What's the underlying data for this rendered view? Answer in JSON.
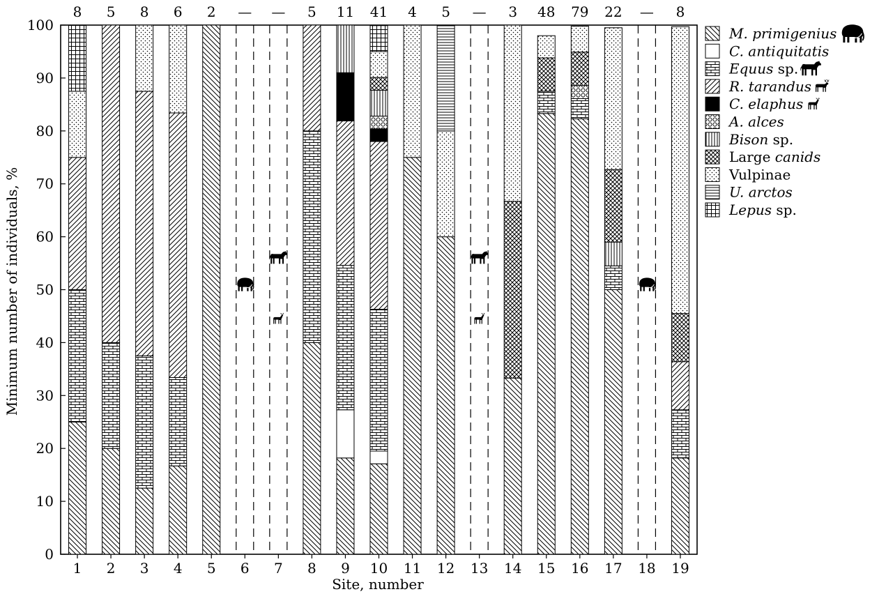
{
  "chart_data": {
    "type": "bar",
    "stacked": true,
    "xlabel": "Site, number",
    "ylabel": "Minimum number of individuals, %",
    "ylim": [
      0,
      100
    ],
    "yticks": [
      0,
      10,
      20,
      30,
      40,
      50,
      60,
      70,
      80,
      90,
      100
    ],
    "grid": false,
    "legend_position": "right",
    "categories": [
      "1",
      "2",
      "3",
      "4",
      "5",
      "6",
      "7",
      "8",
      "9",
      "10",
      "11",
      "12",
      "13",
      "14",
      "15",
      "16",
      "17",
      "18",
      "19"
    ],
    "top_labels": [
      "8",
      "5",
      "8",
      "6",
      "2",
      "—",
      "—",
      "5",
      "11",
      "41",
      "4",
      "5",
      "—",
      "3",
      "48",
      "79",
      "22",
      "—",
      "8"
    ],
    "series": [
      {
        "key": "mammuthus",
        "name": "M. primigenius",
        "name_italic": "M. primigenius",
        "name_plain": "",
        "icon": "mammoth-icon",
        "pattern": "diag-back",
        "values": [
          25,
          20,
          12.5,
          16.7,
          100,
          0,
          0,
          40,
          18.2,
          17.1,
          75,
          60,
          0,
          33.3,
          83.3,
          82.3,
          50,
          0,
          18.2
        ]
      },
      {
        "key": "coelodonta",
        "name": "C. antiquitatis",
        "name_italic": "C. antiquitatis",
        "name_plain": "",
        "icon": "",
        "pattern": "blank",
        "values": [
          0,
          0,
          0,
          0,
          0,
          0,
          0,
          0,
          9.1,
          2.4,
          0,
          0,
          0,
          0,
          0,
          0,
          0,
          0,
          0
        ]
      },
      {
        "key": "equus",
        "name": "Equus sp.",
        "name_italic": "Equus",
        "name_plain": " sp.",
        "icon": "horse-icon",
        "pattern": "brick",
        "values": [
          25,
          20,
          25,
          16.7,
          0,
          0,
          0,
          40,
          27.3,
          26.8,
          0,
          0,
          0,
          0,
          4.2,
          3.8,
          4.5,
          0,
          9.1
        ]
      },
      {
        "key": "rangifer",
        "name": "R. tarandus",
        "name_italic": "R. tarandus",
        "name_plain": "",
        "icon": "reindeer-icon",
        "pattern": "diag-fwd",
        "values": [
          25,
          60,
          50,
          50,
          0,
          0,
          0,
          20,
          27.3,
          31.7,
          0,
          0,
          0,
          0,
          0,
          0,
          0,
          0,
          9.1
        ]
      },
      {
        "key": "cervus",
        "name": "C. elaphus",
        "name_italic": "C. elaphus",
        "name_plain": "",
        "icon": "deer-icon",
        "pattern": "solid",
        "values": [
          0,
          0,
          0,
          0,
          0,
          0,
          0,
          0,
          9.1,
          2.4,
          0,
          0,
          0,
          0,
          0,
          0,
          0,
          0,
          0
        ]
      },
      {
        "key": "alces",
        "name": "A. alces",
        "name_italic": "A. alces",
        "name_plain": "",
        "icon": "",
        "pattern": "circles",
        "values": [
          0,
          0,
          0,
          0,
          0,
          0,
          0,
          0,
          0,
          2.4,
          0,
          0,
          0,
          0,
          0,
          2.5,
          0,
          0,
          0
        ]
      },
      {
        "key": "bison",
        "name": "Bison sp.",
        "name_italic": "Bison",
        "name_plain": " sp.",
        "icon": "",
        "pattern": "vlines",
        "values": [
          0,
          0,
          0,
          0,
          0,
          0,
          0,
          0,
          9.0,
          4.9,
          0,
          0,
          0,
          0,
          0,
          0,
          4.5,
          0,
          0
        ]
      },
      {
        "key": "canids",
        "name": "Large canids",
        "name_italic": "canids",
        "name_plain": "Large ",
        "icon": "",
        "pattern": "crosshatch",
        "values": [
          0,
          0,
          0,
          0,
          0,
          0,
          0,
          0,
          0,
          2.4,
          0,
          0,
          0,
          33.4,
          6.3,
          6.3,
          13.7,
          0,
          9.1
        ]
      },
      {
        "key": "vulpinae",
        "name": "Vulpinae",
        "name_italic": "",
        "name_plain": "Vulpinae",
        "icon": "",
        "pattern": "dots",
        "values": [
          12.5,
          0,
          12.5,
          16.6,
          0,
          0,
          0,
          0,
          0,
          4.9,
          25,
          20,
          0,
          33.3,
          4.2,
          4.9,
          26.8,
          0,
          54.2
        ]
      },
      {
        "key": "ursus",
        "name": "U. arctos",
        "name_italic": "U. arctos",
        "name_plain": "",
        "icon": "",
        "pattern": "hlines",
        "values": [
          0,
          0,
          0,
          0,
          0,
          0,
          0,
          0,
          0,
          0,
          0,
          20,
          0,
          0,
          0,
          0,
          0,
          0,
          0
        ]
      },
      {
        "key": "lepus",
        "name": "Lepus sp.",
        "name_italic": "Lepus",
        "name_plain": " sp.",
        "icon": "",
        "pattern": "grid",
        "values": [
          12.5,
          0,
          0,
          0,
          0,
          0,
          0,
          0,
          0,
          4.9,
          0,
          0,
          0,
          0,
          0,
          0,
          0,
          0,
          0
        ]
      }
    ],
    "no_data_sites": [
      {
        "site": "6",
        "icons": [
          "mammoth-icon"
        ]
      },
      {
        "site": "7",
        "icons": [
          "horse-icon",
          "deer-icon"
        ]
      },
      {
        "site": "13",
        "icons": [
          "horse-icon",
          "deer-icon"
        ]
      },
      {
        "site": "18",
        "icons": [
          "mammoth-icon"
        ]
      }
    ]
  }
}
